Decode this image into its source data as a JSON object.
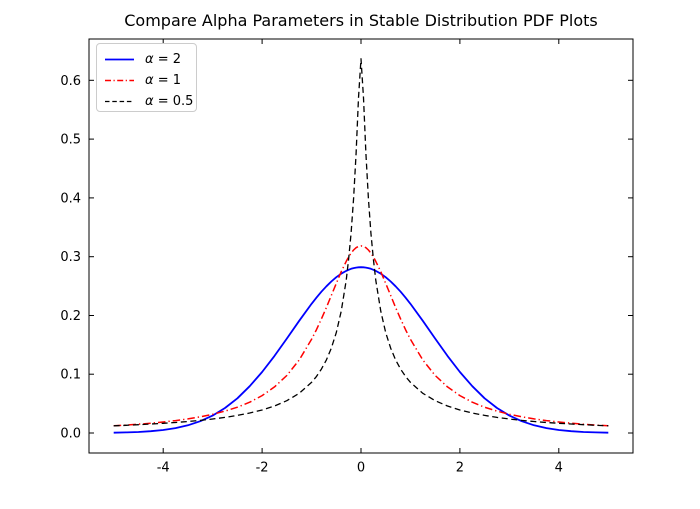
{
  "chart_data": {
    "type": "line",
    "title": "Compare Alpha Parameters in Stable Distribution PDF Plots",
    "xlabel": "",
    "ylabel": "",
    "grid": false,
    "legend_position": "upper left",
    "xlim": [
      -5.5,
      5.5
    ],
    "ylim": [
      -0.034,
      0.6703
    ],
    "x_ticks": {
      "values": [
        -4,
        -2,
        0,
        2,
        4
      ],
      "labels": [
        "-4",
        "-2",
        "0",
        "2",
        "4"
      ]
    },
    "y_ticks": {
      "values": [
        0.0,
        0.1,
        0.2,
        0.3,
        0.4,
        0.5,
        0.6
      ],
      "labels": [
        "0.0",
        "0.1",
        "0.2",
        "0.3",
        "0.4",
        "0.5",
        "0.6"
      ]
    },
    "x": [
      -5,
      -4.75,
      -4.5,
      -4.25,
      -4,
      -3.75,
      -3.5,
      -3.25,
      -3,
      -2.75,
      -2.5,
      -2.25,
      -2,
      -1.75,
      -1.5,
      -1.25,
      -1,
      -0.9,
      -0.8,
      -0.7,
      -0.6,
      -0.5,
      -0.4,
      -0.3,
      -0.25,
      -0.2,
      -0.15,
      -0.1,
      -0.05,
      0,
      0.05,
      0.1,
      0.15,
      0.2,
      0.25,
      0.3,
      0.4,
      0.5,
      0.6,
      0.7,
      0.8,
      0.9,
      1,
      1.25,
      1.5,
      1.75,
      2,
      2.25,
      2.5,
      2.75,
      3,
      3.25,
      3.5,
      3.75,
      4,
      4.25,
      4.5,
      4.75,
      5
    ],
    "series": [
      {
        "name": "α = 2",
        "color": "#0000ff",
        "linestyle": "solid",
        "values": [
          0.0005,
          0.001,
          0.0018,
          0.0031,
          0.0052,
          0.0084,
          0.0132,
          0.0201,
          0.0297,
          0.0426,
          0.0591,
          0.0796,
          0.1038,
          0.1312,
          0.1607,
          0.1909,
          0.2197,
          0.2304,
          0.2404,
          0.2496,
          0.2578,
          0.265,
          0.271,
          0.2758,
          0.2777,
          0.2793,
          0.2805,
          0.2814,
          0.2819,
          0.2821,
          0.2819,
          0.2814,
          0.2805,
          0.2793,
          0.2777,
          0.2758,
          0.271,
          0.265,
          0.2578,
          0.2496,
          0.2404,
          0.2304,
          0.2197,
          0.1909,
          0.1607,
          0.1312,
          0.1038,
          0.0796,
          0.0591,
          0.0426,
          0.0297,
          0.0201,
          0.0132,
          0.0084,
          0.0052,
          0.0031,
          0.0018,
          0.001,
          0.0005
        ]
      },
      {
        "name": "α = 1",
        "color": "#ff0000",
        "linestyle": "dashdot",
        "values": [
          0.0122,
          0.0135,
          0.015,
          0.0167,
          0.0187,
          0.0211,
          0.024,
          0.0275,
          0.0318,
          0.0372,
          0.0439,
          0.0525,
          0.0637,
          0.0784,
          0.0979,
          0.1242,
          0.1592,
          0.1759,
          0.1941,
          0.2136,
          0.234,
          0.2546,
          0.2744,
          0.292,
          0.2996,
          0.3061,
          0.3113,
          0.3152,
          0.3175,
          0.3183,
          0.3175,
          0.3152,
          0.3113,
          0.3061,
          0.2996,
          0.292,
          0.2744,
          0.2546,
          0.234,
          0.2136,
          0.1941,
          0.1759,
          0.1592,
          0.1242,
          0.0979,
          0.0784,
          0.0637,
          0.0525,
          0.0439,
          0.0372,
          0.0318,
          0.0275,
          0.024,
          0.0211,
          0.0187,
          0.0167,
          0.015,
          0.0135,
          0.0122
        ]
      },
      {
        "name": "α = 0.5",
        "color": "#000000",
        "linestyle": "dashed",
        "values": [
          0.0123,
          0.0132,
          0.0142,
          0.0153,
          0.0165,
          0.0179,
          0.0196,
          0.0215,
          0.0238,
          0.0265,
          0.0299,
          0.034,
          0.0391,
          0.0459,
          0.0549,
          0.0675,
          0.0861,
          0.0963,
          0.1087,
          0.1243,
          0.1443,
          0.1708,
          0.2071,
          0.2597,
          0.2956,
          0.3403,
          0.3993,
          0.4759,
          0.5703,
          0.6366,
          0.5703,
          0.4759,
          0.3993,
          0.3403,
          0.2956,
          0.2597,
          0.2071,
          0.1708,
          0.1443,
          0.1243,
          0.1087,
          0.0963,
          0.0861,
          0.0675,
          0.0549,
          0.0459,
          0.0391,
          0.034,
          0.0299,
          0.0265,
          0.0238,
          0.0215,
          0.0196,
          0.0179,
          0.0165,
          0.0153,
          0.0142,
          0.0132,
          0.0123
        ]
      }
    ]
  },
  "legend": {
    "items": [
      {
        "symbol": "α",
        "rest": " = 2"
      },
      {
        "symbol": "α",
        "rest": " = 1"
      },
      {
        "symbol": "α",
        "rest": " = 0.5"
      }
    ]
  }
}
